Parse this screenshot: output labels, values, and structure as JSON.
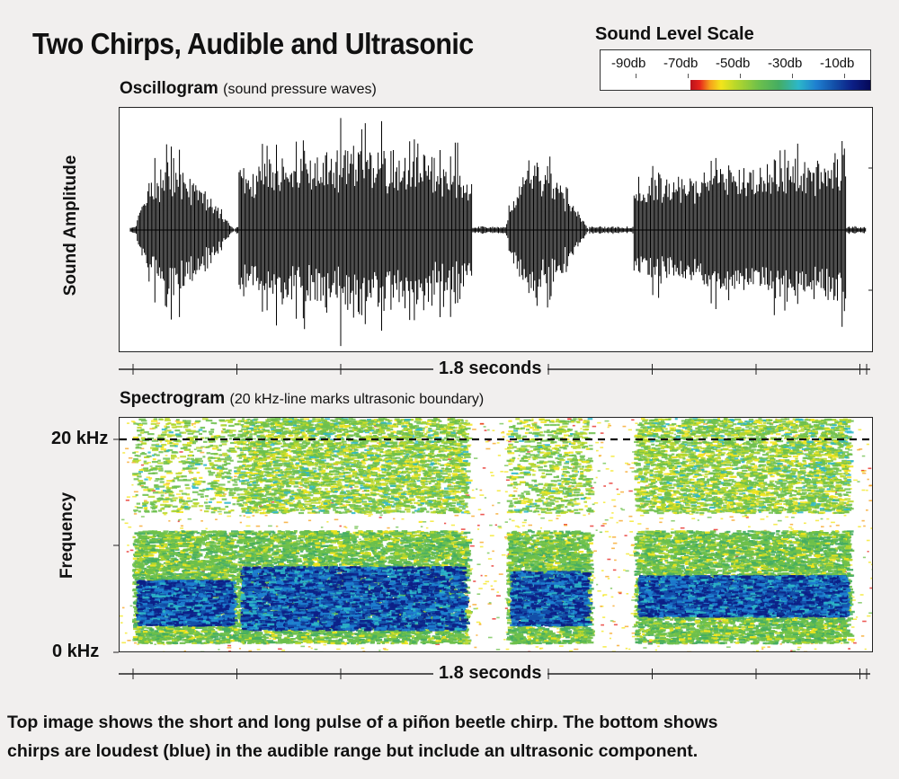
{
  "title": "Two Chirps, Audible and Ultrasonic",
  "scale": {
    "title": "Sound Level Scale",
    "ticks": [
      "-90db",
      "-70db",
      "-50db",
      "-30db",
      "-10db"
    ]
  },
  "oscillogram": {
    "title": "Oscillogram",
    "subtitle": "(sound pressure waves)",
    "ylabel": "Sound Amplitude",
    "time_label": "1.8 seconds"
  },
  "spectrogram": {
    "title": "Spectrogram",
    "subtitle": "(20 kHz-line marks ultrasonic boundary)",
    "ylabel": "Frequency",
    "top_freq": "20 kHz",
    "bottom_freq": "0 kHz",
    "time_label": "1.8 seconds"
  },
  "caption": {
    "line1": "Top image shows the short and long pulse of a piñon beetle chirp. The bottom shows",
    "line2": "chirps are loudest (blue) in the audible range but include an ultrasonic component."
  },
  "colors": {
    "background": "#f1efee",
    "loud": "#0c1f86",
    "medium": "#1e7fd0",
    "soft": "#6dc04b",
    "quiet": "#f3e51b",
    "faint": "#e6221b"
  }
}
